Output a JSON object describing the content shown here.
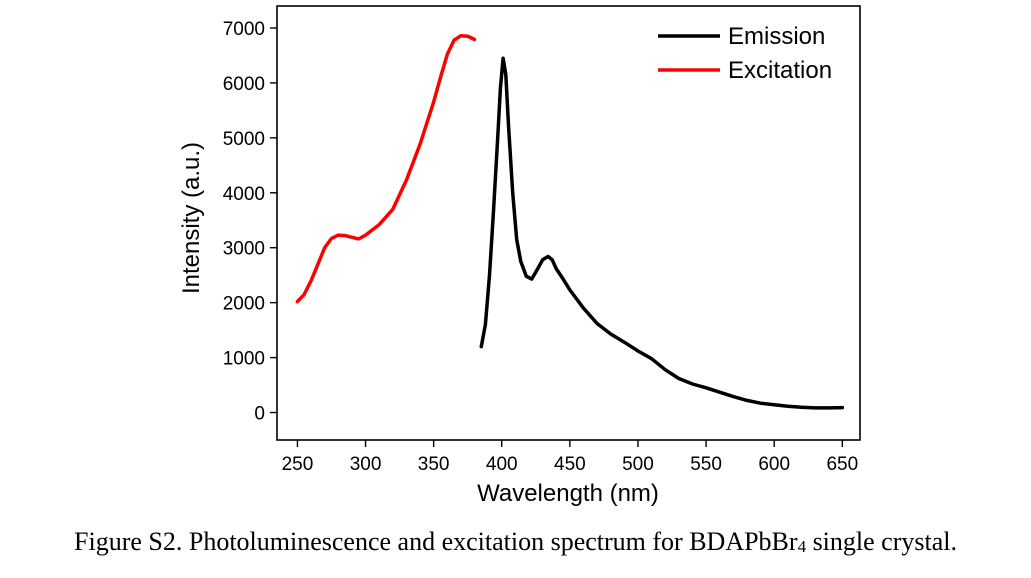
{
  "chart_data": {
    "type": "line",
    "xlabel": "Wavelength (nm)",
    "ylabel": "Intensity (a.u.)",
    "xlim": [
      235,
      663
    ],
    "ylim": [
      -500,
      7400
    ],
    "xticks": [
      250,
      300,
      350,
      400,
      450,
      500,
      550,
      600,
      650
    ],
    "yticks": [
      0,
      1000,
      2000,
      3000,
      4000,
      5000,
      6000,
      7000
    ],
    "grid": false,
    "legend_position": "top-right",
    "series": [
      {
        "name": "Emission",
        "color": "#000000",
        "x": [
          385,
          388,
          391,
          394,
          397,
          399,
          401,
          403,
          405,
          408,
          411,
          414,
          418,
          422,
          426,
          430,
          434,
          437,
          440,
          445,
          450,
          460,
          470,
          480,
          490,
          500,
          510,
          520,
          530,
          540,
          550,
          560,
          570,
          580,
          590,
          600,
          610,
          620,
          630,
          640,
          650
        ],
        "y": [
          1200,
          1600,
          2500,
          3700,
          5000,
          5900,
          6450,
          6150,
          5200,
          4000,
          3150,
          2750,
          2480,
          2430,
          2600,
          2780,
          2840,
          2780,
          2620,
          2430,
          2230,
          1900,
          1620,
          1430,
          1280,
          1120,
          980,
          780,
          620,
          520,
          450,
          370,
          290,
          220,
          170,
          140,
          115,
          95,
          85,
          85,
          90
        ]
      },
      {
        "name": "Excitation",
        "color": "#ff0000",
        "x": [
          250,
          255,
          260,
          265,
          270,
          275,
          280,
          285,
          290,
          295,
          300,
          310,
          320,
          330,
          340,
          350,
          355,
          360,
          365,
          370,
          375,
          380
        ],
        "y": [
          2020,
          2150,
          2400,
          2700,
          3000,
          3170,
          3230,
          3220,
          3190,
          3160,
          3230,
          3420,
          3700,
          4230,
          4880,
          5650,
          6100,
          6520,
          6780,
          6860,
          6850,
          6790
        ]
      }
    ]
  },
  "caption": {
    "text": "Figure S2. Photoluminescence and excitation spectrum for BDAPbBr",
    "subscript": "4",
    "suffix": " single crystal."
  }
}
